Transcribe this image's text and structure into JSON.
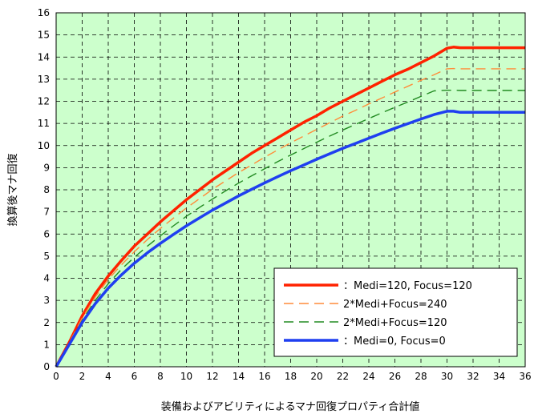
{
  "chart_data": {
    "type": "line",
    "xlabel": "装備およびアビリティによるマナ回復プロパティ合計値",
    "ylabel": "換算後マナ回復",
    "xlim": [
      0,
      36
    ],
    "ylim": [
      0,
      16
    ],
    "xticks": [
      0,
      2,
      4,
      6,
      8,
      10,
      12,
      14,
      16,
      18,
      20,
      22,
      24,
      26,
      28,
      30,
      32,
      34,
      36
    ],
    "yticks": [
      0,
      1,
      2,
      3,
      4,
      5,
      6,
      7,
      8,
      9,
      10,
      11,
      12,
      13,
      14,
      15,
      16
    ],
    "grid": true,
    "plot_background": "#ccffcc",
    "legend_position": "bottom-right",
    "series": [
      {
        "name": "：Medi=120, Focus=120",
        "color": "#ff2200",
        "style": "solid",
        "x": [
          0,
          1,
          2,
          3,
          4,
          5,
          6,
          7,
          8,
          9,
          10,
          11,
          12,
          13,
          14,
          15,
          16,
          17,
          18,
          19,
          20,
          21,
          22,
          23,
          24,
          25,
          26,
          27,
          28,
          29,
          30,
          30.5,
          31,
          32,
          33,
          34,
          35,
          36
        ],
        "values": [
          0,
          1.1,
          2.3,
          3.3,
          4.1,
          4.8,
          5.45,
          6.0,
          6.55,
          7.05,
          7.55,
          8.0,
          8.45,
          8.85,
          9.25,
          9.65,
          10.0,
          10.35,
          10.7,
          11.05,
          11.35,
          11.7,
          12.0,
          12.3,
          12.6,
          12.9,
          13.2,
          13.45,
          13.75,
          14.05,
          14.4,
          14.45,
          14.42,
          14.42,
          14.42,
          14.42,
          14.42,
          14.42
        ]
      },
      {
        "name": "2*Medi+Focus=240",
        "color": "#ff8c3a",
        "style": "dashed",
        "x": [
          0,
          1,
          2,
          3,
          4,
          5,
          6,
          7,
          8,
          9,
          10,
          11,
          12,
          13,
          14,
          15,
          16,
          17,
          18,
          19,
          20,
          21,
          22,
          23,
          24,
          25,
          26,
          27,
          28,
          29,
          30,
          30.5,
          31,
          32,
          33,
          34,
          35,
          36
        ],
        "values": [
          0,
          1.08,
          2.2,
          3.15,
          3.95,
          4.6,
          5.2,
          5.75,
          6.25,
          6.72,
          7.18,
          7.6,
          8.02,
          8.4,
          8.78,
          9.12,
          9.47,
          9.8,
          10.12,
          10.43,
          10.73,
          11.03,
          11.33,
          11.6,
          11.88,
          12.15,
          12.42,
          12.68,
          12.95,
          13.2,
          13.47,
          13.48,
          13.47,
          13.47,
          13.47,
          13.47,
          13.47,
          13.47
        ]
      },
      {
        "name": "2*Medi+Focus=120",
        "color": "#228b22",
        "style": "dashed",
        "x": [
          0,
          1,
          2,
          3,
          4,
          5,
          6,
          7,
          8,
          9,
          10,
          11,
          12,
          13,
          14,
          15,
          16,
          17,
          18,
          19,
          20,
          21,
          22,
          23,
          24,
          25,
          26,
          27,
          28,
          29,
          30,
          30.5,
          31,
          32,
          33,
          34,
          35,
          36
        ],
        "values": [
          0,
          1.05,
          2.1,
          3.0,
          3.75,
          4.4,
          4.95,
          5.45,
          5.92,
          6.37,
          6.8,
          7.2,
          7.58,
          7.95,
          8.3,
          8.63,
          8.95,
          9.27,
          9.57,
          9.86,
          10.15,
          10.43,
          10.7,
          10.96,
          11.22,
          11.48,
          11.73,
          11.97,
          12.22,
          12.47,
          12.5,
          12.5,
          12.49,
          12.49,
          12.49,
          12.49,
          12.49,
          12.49
        ]
      },
      {
        "name": "：Medi=0, Focus=0",
        "color": "#1f3ff0",
        "style": "solid",
        "x": [
          0,
          1,
          2,
          3,
          4,
          5,
          6,
          7,
          8,
          9,
          10,
          11,
          12,
          13,
          14,
          15,
          16,
          17,
          18,
          19,
          20,
          21,
          22,
          23,
          24,
          25,
          26,
          27,
          28,
          29,
          30,
          30.5,
          31,
          32,
          33,
          34,
          35,
          36
        ],
        "values": [
          0,
          1.0,
          2.0,
          2.85,
          3.55,
          4.15,
          4.68,
          5.15,
          5.58,
          5.98,
          6.37,
          6.73,
          7.08,
          7.4,
          7.72,
          8.02,
          8.31,
          8.59,
          8.86,
          9.12,
          9.38,
          9.63,
          9.87,
          10.1,
          10.33,
          10.56,
          10.78,
          10.99,
          11.2,
          11.4,
          11.55,
          11.55,
          11.5,
          11.5,
          11.5,
          11.5,
          11.5,
          11.5
        ]
      }
    ]
  }
}
